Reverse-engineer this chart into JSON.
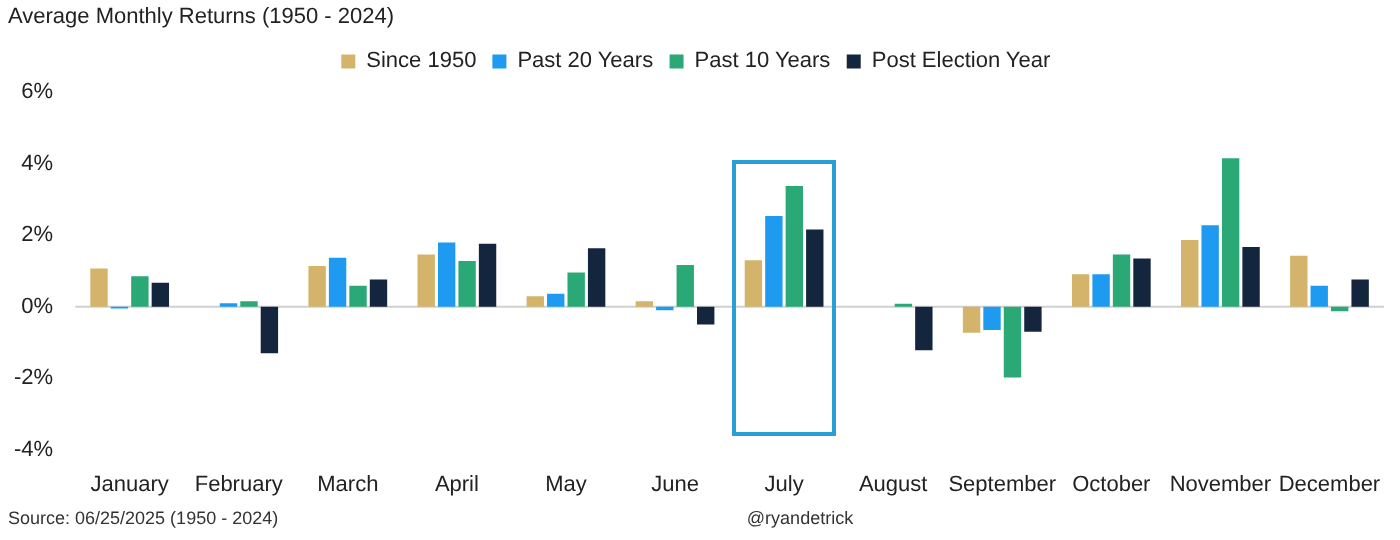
{
  "chart_data": {
    "type": "bar",
    "title": "Average Monthly Returns (1950 - 2024)",
    "categories": [
      "January",
      "February",
      "March",
      "April",
      "May",
      "June",
      "July",
      "August",
      "September",
      "October",
      "November",
      "December"
    ],
    "series": [
      {
        "name": "Since 1950",
        "color": "#d4b36a",
        "values": [
          1.07,
          null,
          1.14,
          1.46,
          0.29,
          0.15,
          1.3,
          0.0,
          -0.73,
          0.91,
          1.87,
          1.43
        ]
      },
      {
        "name": "Past 20 Years",
        "color": "#1e9bf0",
        "values": [
          -0.05,
          0.1,
          1.37,
          1.8,
          0.36,
          -0.1,
          2.54,
          null,
          -0.65,
          0.91,
          2.28,
          0.59
        ]
      },
      {
        "name": "Past 10 Years",
        "color": "#2aa876",
        "values": [
          0.85,
          0.15,
          0.59,
          1.28,
          0.96,
          1.17,
          3.38,
          0.08,
          -1.98,
          1.46,
          4.16,
          -0.13
        ]
      },
      {
        "name": "Post Election Year",
        "color": "#14263d",
        "values": [
          0.67,
          -1.3,
          0.76,
          1.76,
          1.64,
          -0.5,
          2.16,
          -1.22,
          -0.7,
          1.35,
          1.67,
          0.76
        ]
      }
    ],
    "ylim": [
      -4,
      6
    ],
    "yticks": [
      {
        "value": -4,
        "label": "-4%"
      },
      {
        "value": -2,
        "label": "-2%"
      },
      {
        "value": 0,
        "label": "0%"
      },
      {
        "value": 2,
        "label": "2%"
      },
      {
        "value": 4,
        "label": "4%"
      },
      {
        "value": 6,
        "label": "6%"
      }
    ],
    "ref_lines": [
      {
        "axis": "y",
        "value": 0,
        "color": "#d0d0d0"
      }
    ],
    "legend": "top",
    "grid": false,
    "annotations": [
      "Source: 06/25/2025 (1950 - 2024)",
      "@ryandetrick"
    ]
  }
}
